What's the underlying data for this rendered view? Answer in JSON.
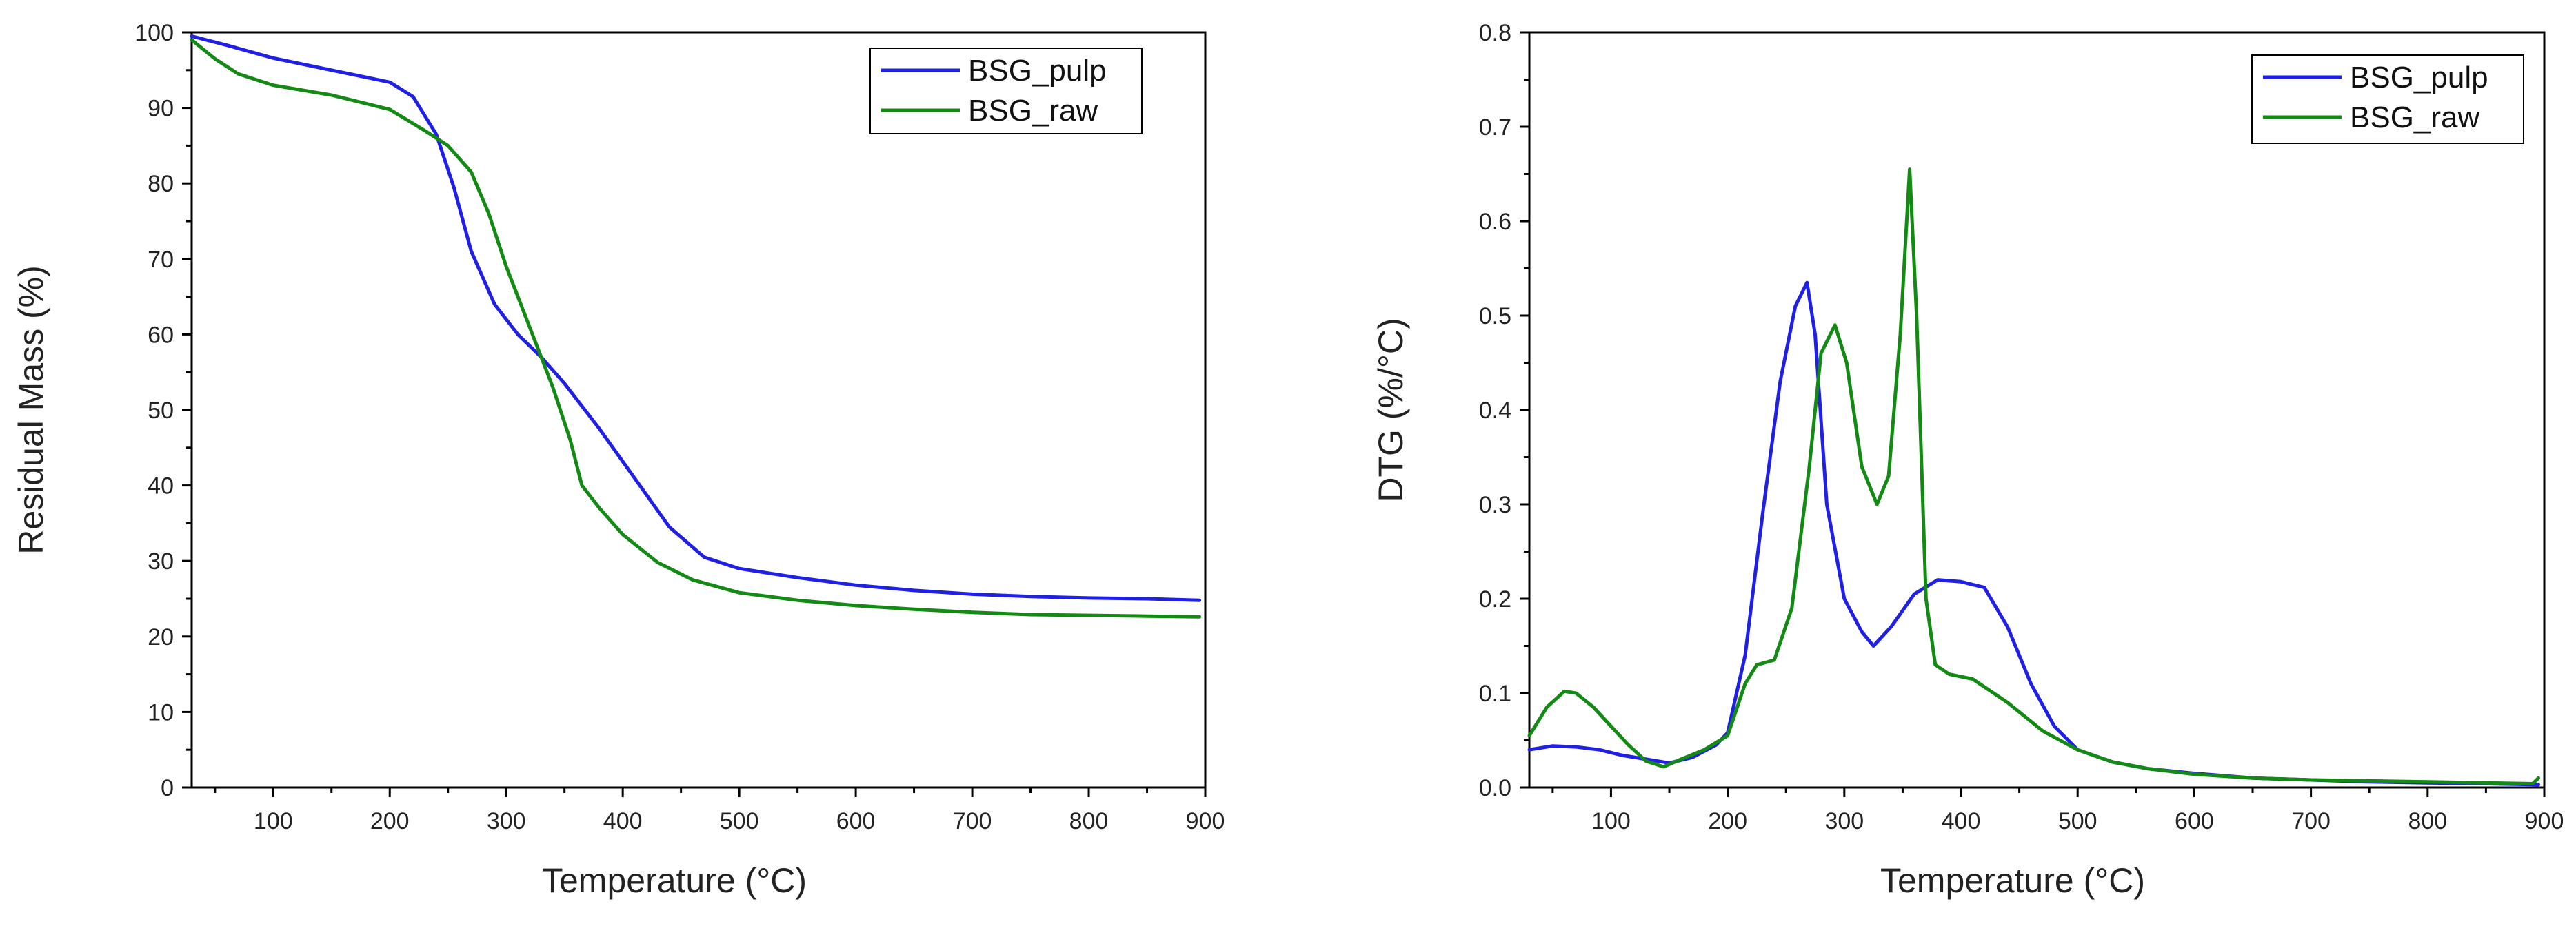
{
  "colors": {
    "BSG_pulp": "#1f1fe6",
    "BSG_raw": "#138a13",
    "axis": "#000000",
    "background": "#ffffff"
  },
  "chart_data": [
    {
      "type": "line",
      "title": "",
      "xlabel": "Temperature (°C)",
      "ylabel": "Residual Mass (%)",
      "xlim": [
        30,
        900
      ],
      "ylim": [
        0,
        100
      ],
      "xticks": [
        100,
        200,
        300,
        400,
        500,
        600,
        700,
        800,
        900
      ],
      "yticks": [
        0,
        10,
        20,
        30,
        40,
        50,
        60,
        70,
        80,
        90,
        100
      ],
      "grid": false,
      "legend_position": "top-right",
      "series": [
        {
          "name": "BSG_pulp",
          "color_key": "BSG_pulp",
          "x": [
            30,
            60,
            100,
            150,
            200,
            220,
            240,
            255,
            270,
            290,
            310,
            330,
            350,
            380,
            410,
            440,
            470,
            500,
            550,
            600,
            650,
            700,
            750,
            800,
            850,
            895
          ],
          "y": [
            99.5,
            98.3,
            96.6,
            95,
            93.4,
            91.5,
            86.5,
            79.5,
            71,
            64,
            60,
            57,
            53.5,
            47.5,
            41,
            34.5,
            30.5,
            29,
            27.8,
            26.8,
            26.1,
            25.6,
            25.3,
            25.1,
            25,
            24.8
          ]
        },
        {
          "name": "BSG_raw",
          "color_key": "BSG_raw",
          "x": [
            30,
            50,
            70,
            100,
            150,
            200,
            230,
            250,
            270,
            285,
            300,
            320,
            340,
            355,
            365,
            380,
            400,
            430,
            460,
            500,
            550,
            600,
            650,
            700,
            750,
            800,
            850,
            895
          ],
          "y": [
            99,
            96.5,
            94.5,
            93,
            91.7,
            89.8,
            87,
            85,
            81.5,
            76,
            69,
            61,
            53,
            46,
            40,
            37,
            33.5,
            29.8,
            27.5,
            25.8,
            24.8,
            24.1,
            23.6,
            23.2,
            22.9,
            22.8,
            22.7,
            22.6
          ]
        }
      ]
    },
    {
      "type": "line",
      "title": "",
      "xlabel": "Temperature (°C)",
      "ylabel": "DTG (%/°C)",
      "xlim": [
        30,
        900
      ],
      "ylim": [
        0,
        0.8
      ],
      "xticks": [
        100,
        200,
        300,
        400,
        500,
        600,
        700,
        800,
        900
      ],
      "yticks": [
        0.0,
        0.1,
        0.2,
        0.3,
        0.4,
        0.5,
        0.6,
        0.7,
        0.8
      ],
      "grid": false,
      "legend_position": "top-right",
      "series": [
        {
          "name": "BSG_pulp",
          "color_key": "BSG_pulp",
          "x": [
            30,
            50,
            70,
            90,
            110,
            130,
            150,
            170,
            190,
            200,
            215,
            230,
            245,
            258,
            268,
            275,
            285,
            300,
            315,
            325,
            340,
            360,
            380,
            400,
            420,
            440,
            460,
            480,
            500,
            530,
            560,
            600,
            650,
            700,
            750,
            800,
            850,
            895
          ],
          "y": [
            0.04,
            0.044,
            0.043,
            0.04,
            0.034,
            0.03,
            0.026,
            0.032,
            0.045,
            0.058,
            0.14,
            0.29,
            0.43,
            0.51,
            0.535,
            0.48,
            0.3,
            0.2,
            0.165,
            0.15,
            0.17,
            0.205,
            0.22,
            0.218,
            0.212,
            0.17,
            0.11,
            0.065,
            0.04,
            0.027,
            0.02,
            0.015,
            0.01,
            0.008,
            0.006,
            0.005,
            0.004,
            0.003
          ]
        },
        {
          "name": "BSG_raw",
          "color_key": "BSG_raw",
          "x": [
            30,
            45,
            60,
            70,
            85,
            100,
            115,
            130,
            145,
            160,
            180,
            200,
            215,
            225,
            240,
            255,
            270,
            280,
            292,
            302,
            315,
            328,
            338,
            348,
            356,
            362,
            370,
            378,
            390,
            410,
            440,
            470,
            500,
            530,
            560,
            600,
            650,
            700,
            750,
            800,
            850,
            890,
            895
          ],
          "y": [
            0.055,
            0.085,
            0.102,
            0.1,
            0.085,
            0.065,
            0.045,
            0.028,
            0.022,
            0.03,
            0.04,
            0.055,
            0.11,
            0.13,
            0.135,
            0.19,
            0.34,
            0.46,
            0.49,
            0.45,
            0.34,
            0.3,
            0.33,
            0.48,
            0.655,
            0.5,
            0.2,
            0.13,
            0.12,
            0.115,
            0.09,
            0.06,
            0.04,
            0.027,
            0.02,
            0.014,
            0.01,
            0.008,
            0.007,
            0.006,
            0.005,
            0.004,
            0.01
          ]
        }
      ]
    }
  ]
}
